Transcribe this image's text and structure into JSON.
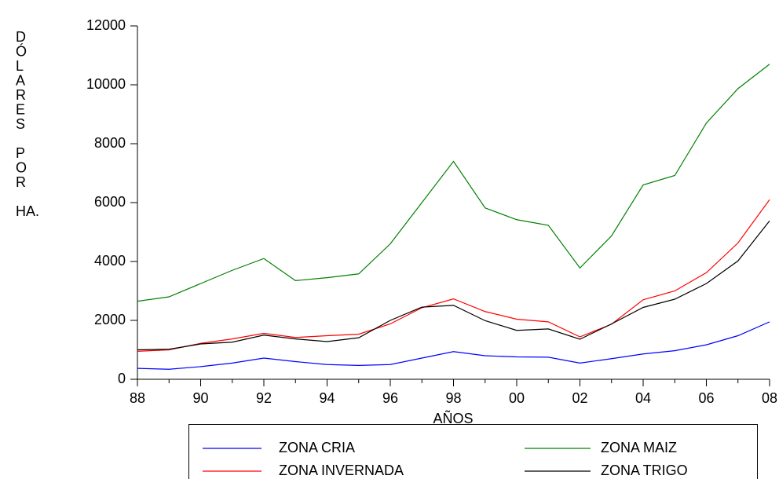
{
  "chart_data": {
    "type": "line",
    "y_label": "DÓLARES POR HA.",
    "x_label": "AÑOS",
    "categories": [
      "88",
      null,
      "90",
      null,
      "92",
      null,
      "94",
      null,
      "96",
      null,
      "98",
      null,
      "00",
      null,
      "02",
      null,
      "04",
      null,
      "06",
      null,
      "08"
    ],
    "series": [
      {
        "name": "ZONA CRIA",
        "color": "#0000ff",
        "values": [
          370,
          340,
          430,
          550,
          720,
          600,
          500,
          470,
          500,
          720,
          940,
          800,
          760,
          750,
          550,
          700,
          860,
          970,
          1170,
          1480,
          1950
        ]
      },
      {
        "name": "ZONA MAIZ",
        "color": "#008000",
        "values": [
          2650,
          2800,
          3250,
          3700,
          4100,
          3350,
          3450,
          3580,
          4600,
          6000,
          7400,
          5820,
          5420,
          5230,
          3780,
          4870,
          6600,
          6920,
          8700,
          9870,
          10700
        ]
      },
      {
        "name": "ZONA INVERNADA",
        "color": "#ff0000",
        "values": [
          950,
          1000,
          1220,
          1370,
          1560,
          1420,
          1480,
          1530,
          1880,
          2430,
          2730,
          2300,
          2040,
          1950,
          1440,
          1870,
          2700,
          3000,
          3620,
          4630,
          6100
        ]
      },
      {
        "name": "ZONA TRIGO",
        "color": "#000000",
        "values": [
          1000,
          1020,
          1200,
          1260,
          1500,
          1370,
          1280,
          1410,
          2000,
          2450,
          2510,
          1990,
          1660,
          1710,
          1360,
          1880,
          2440,
          2720,
          3250,
          4020,
          5380
        ]
      }
    ],
    "ylim": [
      0,
      12000
    ],
    "yticks": [
      0,
      2000,
      4000,
      6000,
      8000,
      10000,
      12000
    ],
    "grid": false,
    "legend": "bottom"
  }
}
